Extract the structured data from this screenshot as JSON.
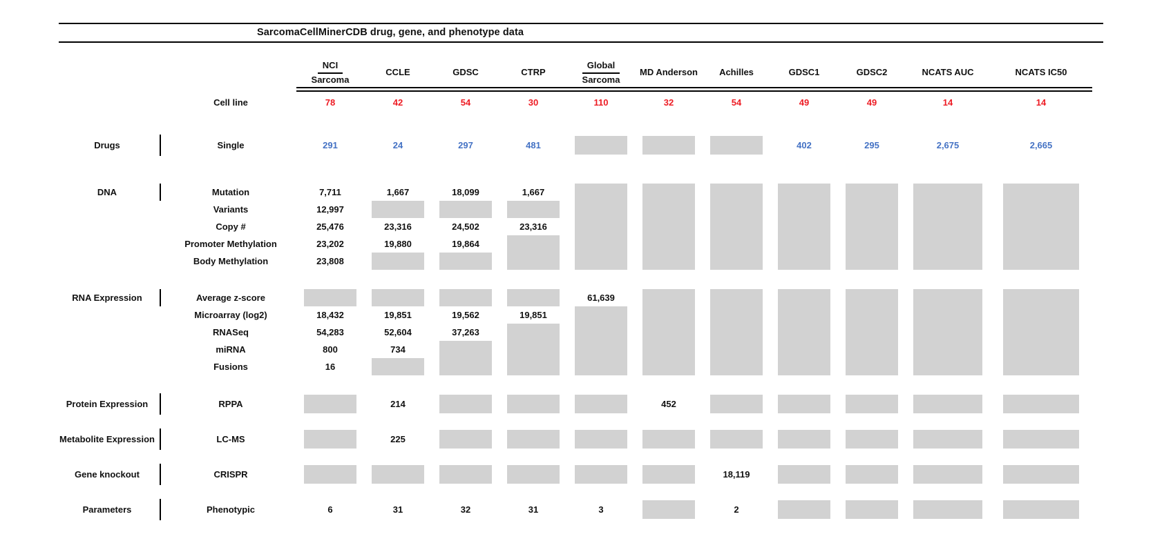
{
  "chart_data": {
    "type": "table",
    "title": "SarcomaCellMinerCDB drug, gene, and phenotype data",
    "columns": [
      {
        "top": "NCI",
        "name": "Sarcoma"
      },
      {
        "name": "CCLE"
      },
      {
        "name": "GDSC"
      },
      {
        "name": "CTRP"
      },
      {
        "top": "Global",
        "name": "Sarcoma"
      },
      {
        "name": "MD Anderson"
      },
      {
        "name": "Achilles"
      },
      {
        "name": "GDSC1"
      },
      {
        "name": "GDSC2"
      },
      {
        "name": "NCATS AUC"
      },
      {
        "name": "NCATS IC50"
      }
    ],
    "cell_line_row": {
      "label": "Cell line",
      "values": [
        78,
        42,
        54,
        30,
        110,
        32,
        54,
        49,
        49,
        14,
        14
      ]
    },
    "sections": [
      {
        "category": "Drugs",
        "value_color": "blue",
        "rows": [
          {
            "label": "Single",
            "values": [
              291,
              24,
              297,
              481,
              null,
              null,
              null,
              402,
              295,
              2675,
              2665
            ]
          }
        ]
      },
      {
        "category": "DNA",
        "rows": [
          {
            "label": "Mutation",
            "values": [
              7711,
              1667,
              18099,
              1667,
              null,
              null,
              null,
              null,
              null,
              null,
              null
            ]
          },
          {
            "label": "Variants",
            "values": [
              12997,
              null,
              null,
              null,
              null,
              null,
              null,
              null,
              null,
              null,
              null
            ]
          },
          {
            "label": "Copy #",
            "values": [
              25476,
              23316,
              24502,
              23316,
              null,
              null,
              null,
              null,
              null,
              null,
              null
            ]
          },
          {
            "label": "Promoter Methylation",
            "values": [
              23202,
              19880,
              19864,
              null,
              null,
              null,
              null,
              null,
              null,
              null,
              null
            ]
          },
          {
            "label": "Body Methylation",
            "values": [
              23808,
              null,
              null,
              null,
              null,
              null,
              null,
              null,
              null,
              null,
              null
            ]
          }
        ]
      },
      {
        "category": "RNA Expression",
        "rows": [
          {
            "label": "Average z-score",
            "values": [
              null,
              null,
              null,
              null,
              61639,
              null,
              null,
              null,
              null,
              null,
              null
            ]
          },
          {
            "label": "Microarray (log2)",
            "values": [
              18432,
              19851,
              19562,
              19851,
              null,
              null,
              null,
              null,
              null,
              null,
              null
            ]
          },
          {
            "label": "RNASeq",
            "values": [
              54283,
              52604,
              37263,
              null,
              null,
              null,
              null,
              null,
              null,
              null,
              null
            ]
          },
          {
            "label": "miRNA",
            "values": [
              800,
              734,
              null,
              null,
              null,
              null,
              null,
              null,
              null,
              null,
              null
            ]
          },
          {
            "label": "Fusions",
            "values": [
              16,
              null,
              null,
              null,
              null,
              null,
              null,
              null,
              null,
              null,
              null
            ]
          }
        ]
      },
      {
        "category": "Protein Expression",
        "rows": [
          {
            "label": "RPPA",
            "values": [
              null,
              214,
              null,
              null,
              null,
              452,
              null,
              null,
              null,
              null,
              null
            ]
          }
        ]
      },
      {
        "category": "Metabolite Expression",
        "rows": [
          {
            "label": "LC-MS",
            "values": [
              null,
              225,
              null,
              null,
              null,
              null,
              null,
              null,
              null,
              null,
              null
            ]
          }
        ]
      },
      {
        "category": "Gene knockout",
        "rows": [
          {
            "label": "CRISPR",
            "values": [
              null,
              null,
              null,
              null,
              null,
              null,
              18119,
              null,
              null,
              null,
              null
            ]
          }
        ]
      },
      {
        "category": "Parameters",
        "rows": [
          {
            "label": "Phenotypic",
            "values": [
              6,
              31,
              32,
              31,
              3,
              null,
              2,
              null,
              null,
              null,
              null
            ]
          }
        ]
      }
    ],
    "colors": {
      "cell_line_counts": "#ed1c24",
      "drug_counts": "#4472c4",
      "no_data_box": "#d2d2d2"
    }
  }
}
